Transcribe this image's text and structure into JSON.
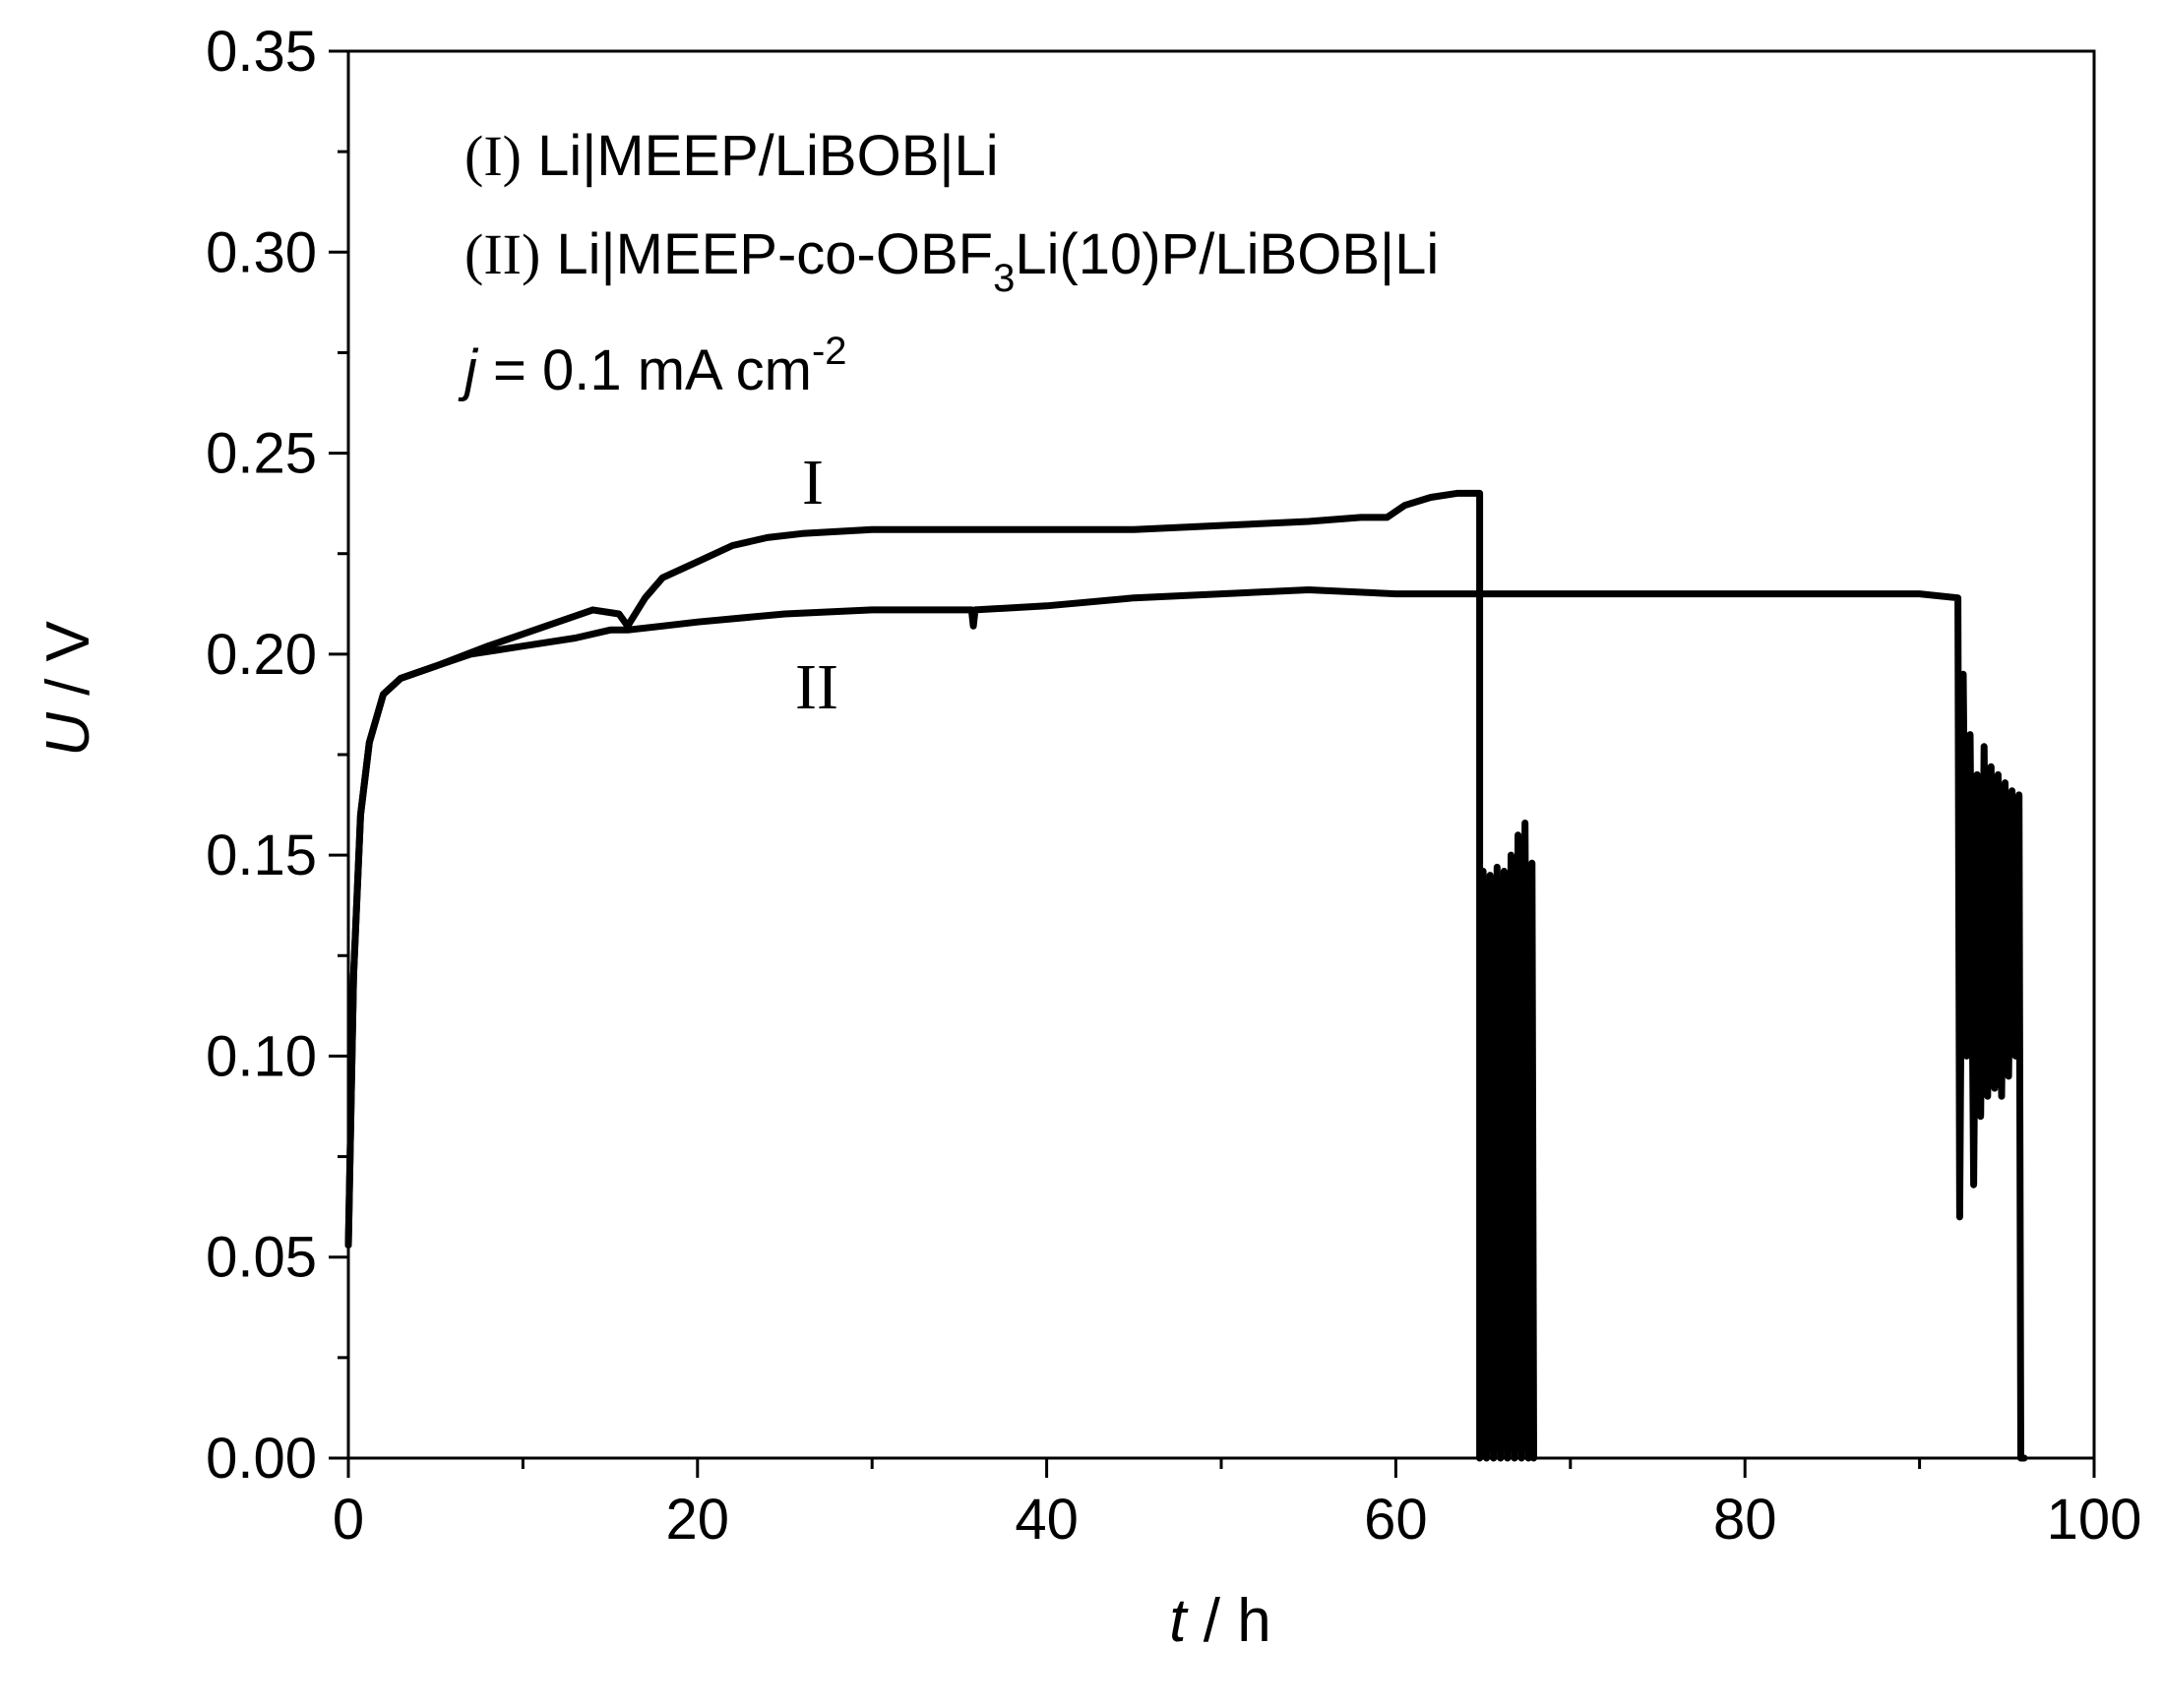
{
  "chart_data": {
    "type": "line",
    "xlabel": {
      "var": "t",
      "sep": " / ",
      "unit": "h"
    },
    "ylabel": {
      "var": "U",
      "sep": " / ",
      "unit": "V"
    },
    "xlim": [
      0,
      100
    ],
    "ylim": [
      0,
      0.35
    ],
    "x_ticks": [
      "0",
      "20",
      "40",
      "60",
      "80",
      "100"
    ],
    "y_ticks": [
      "0.00",
      "0.05",
      "0.10",
      "0.15",
      "0.20",
      "0.25",
      "0.30",
      "0.35"
    ],
    "grid": false,
    "annotations": {
      "line1": {
        "numeral": "(I)",
        "text": " Li|MEEP/LiBOB|Li"
      },
      "line2": {
        "numeral": "(II)",
        "text_a": " Li|MEEP-co-OBF",
        "sub": "3",
        "text_b": "Li(10)P/LiBOB|Li"
      },
      "line3": {
        "var": "j",
        "text": " = 0.1 mA cm",
        "sup": "-2"
      },
      "curve_I": "I",
      "curve_II": "II"
    },
    "series": [
      {
        "label": "I",
        "points": [
          [
            0,
            0.053
          ],
          [
            0.3,
            0.12
          ],
          [
            0.7,
            0.16
          ],
          [
            1.2,
            0.178
          ],
          [
            2,
            0.19
          ],
          [
            3,
            0.194
          ],
          [
            5,
            0.197
          ],
          [
            8,
            0.202
          ],
          [
            10,
            0.205
          ],
          [
            12,
            0.208
          ],
          [
            14,
            0.211
          ],
          [
            15.5,
            0.21
          ],
          [
            16,
            0.207
          ],
          [
            17,
            0.214
          ],
          [
            18,
            0.219
          ],
          [
            20,
            0.223
          ],
          [
            22,
            0.227
          ],
          [
            24,
            0.229
          ],
          [
            26,
            0.23
          ],
          [
            30,
            0.231
          ],
          [
            35,
            0.231
          ],
          [
            40,
            0.231
          ],
          [
            45,
            0.231
          ],
          [
            50,
            0.232
          ],
          [
            55,
            0.233
          ],
          [
            58,
            0.234
          ],
          [
            59.5,
            0.234
          ],
          [
            60.5,
            0.237
          ],
          [
            62,
            0.239
          ],
          [
            63.5,
            0.24
          ],
          [
            64.8,
            0.24
          ],
          [
            64.8,
            0.0
          ],
          [
            65.0,
            0.146
          ],
          [
            65.2,
            0.0
          ],
          [
            65.4,
            0.145
          ],
          [
            65.6,
            0.0
          ],
          [
            65.8,
            0.147
          ],
          [
            66.0,
            0.0
          ],
          [
            66.2,
            0.146
          ],
          [
            66.4,
            0.0
          ],
          [
            66.6,
            0.15
          ],
          [
            66.8,
            0.0
          ],
          [
            67.0,
            0.155
          ],
          [
            67.2,
            0.0
          ],
          [
            67.4,
            0.158
          ],
          [
            67.6,
            0.0
          ],
          [
            67.8,
            0.148
          ],
          [
            67.9,
            0.0
          ]
        ]
      },
      {
        "label": "II",
        "points": [
          [
            0,
            0.053
          ],
          [
            0.3,
            0.12
          ],
          [
            0.7,
            0.16
          ],
          [
            1.2,
            0.178
          ],
          [
            2,
            0.19
          ],
          [
            3,
            0.194
          ],
          [
            5,
            0.197
          ],
          [
            7,
            0.2
          ],
          [
            10,
            0.202
          ],
          [
            13,
            0.204
          ],
          [
            15,
            0.206
          ],
          [
            16,
            0.206
          ],
          [
            18,
            0.207
          ],
          [
            20,
            0.208
          ],
          [
            25,
            0.21
          ],
          [
            30,
            0.211
          ],
          [
            35,
            0.211
          ],
          [
            35.7,
            0.211
          ],
          [
            35.8,
            0.207
          ],
          [
            35.9,
            0.211
          ],
          [
            40,
            0.212
          ],
          [
            45,
            0.214
          ],
          [
            50,
            0.215
          ],
          [
            55,
            0.216
          ],
          [
            60,
            0.215
          ],
          [
            65,
            0.215
          ],
          [
            70,
            0.215
          ],
          [
            75,
            0.215
          ],
          [
            80,
            0.215
          ],
          [
            85,
            0.215
          ],
          [
            90,
            0.215
          ],
          [
            92.2,
            0.214
          ],
          [
            92.3,
            0.06
          ],
          [
            92.5,
            0.195
          ],
          [
            92.7,
            0.1
          ],
          [
            92.9,
            0.18
          ],
          [
            93.1,
            0.068
          ],
          [
            93.3,
            0.17
          ],
          [
            93.5,
            0.085
          ],
          [
            93.7,
            0.177
          ],
          [
            93.9,
            0.09
          ],
          [
            94.1,
            0.172
          ],
          [
            94.3,
            0.092
          ],
          [
            94.5,
            0.17
          ],
          [
            94.7,
            0.09
          ],
          [
            94.9,
            0.168
          ],
          [
            95.1,
            0.095
          ],
          [
            95.3,
            0.166
          ],
          [
            95.5,
            0.1
          ],
          [
            95.7,
            0.165
          ],
          [
            95.8,
            0.0
          ],
          [
            96.0,
            0.0
          ]
        ]
      }
    ]
  }
}
